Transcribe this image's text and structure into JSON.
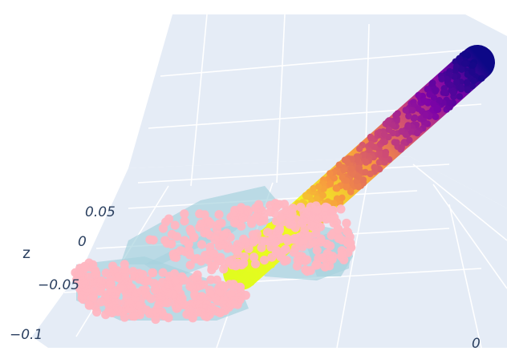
{
  "chart_data": {
    "type": "scatter",
    "dimensions": "3d",
    "title": "",
    "axes": {
      "z": {
        "label": "z",
        "tick_labels": [
          "0.05",
          "0",
          "−0.05",
          "−0.1"
        ],
        "tick_values": [
          0.05,
          0,
          -0.05,
          -0.1
        ]
      },
      "y": {
        "tick_labels_visible": [
          "0"
        ]
      }
    },
    "grid": true,
    "legend": "none",
    "colors": {
      "scene_background": "#e5ecf6",
      "grid_line": "#ffffff",
      "tick_text": "#2a3f5f",
      "hand_surface": "#a8d3de",
      "contact_points": "#ffb6c1",
      "rod_colorscale": [
        "#0d0887",
        "#7e03a8",
        "#cc4778",
        "#f89540",
        "#f0f921",
        "#e1fc1f"
      ]
    },
    "series": [
      {
        "kind": "surface-blobs",
        "count": 5
      },
      {
        "kind": "point-cloud",
        "count": 620
      },
      {
        "kind": "colored-rod",
        "count": 900,
        "colorscale": "plasma"
      }
    ]
  }
}
